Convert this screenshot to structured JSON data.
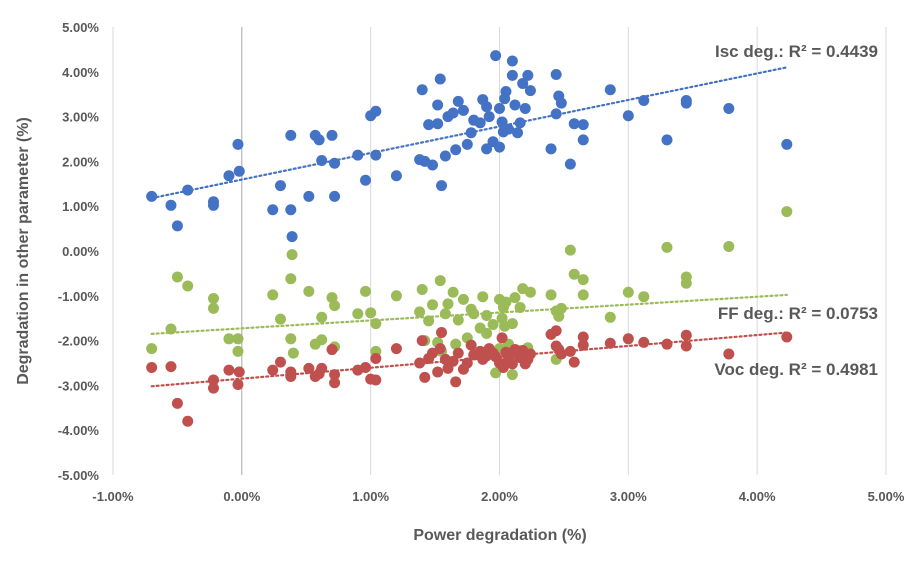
{
  "chart_data": {
    "type": "scatter",
    "xlabel": "Power degradation (%)",
    "ylabel": "Degradation in other parameter (%)",
    "xlim": [
      -1.0,
      5.0
    ],
    "ylim": [
      -5.0,
      5.0
    ],
    "x_ticks": [
      "-1.00%",
      "0.00%",
      "1.00%",
      "2.00%",
      "3.00%",
      "4.00%",
      "5.00%"
    ],
    "y_ticks": [
      "5.00%",
      "4.00%",
      "3.00%",
      "2.00%",
      "1.00%",
      "0.00%",
      "-1.00%",
      "-2.00%",
      "-3.00%",
      "-4.00%",
      "-5.00%"
    ],
    "grid": "vertical",
    "annotations": [
      "Isc deg.: R² = 0.4439",
      "FF deg.: R² = 0.0753",
      "Voc deg. R² = 0.4981"
    ],
    "series": [
      {
        "color": "#4472c4",
        "trendline": {
          "x0": -0.7,
          "y0": 1.18,
          "x1": 4.23,
          "y1": 4.1
        },
        "points": [
          [
            -0.7,
            1.22
          ],
          [
            -0.55,
            1.02
          ],
          [
            -0.5,
            0.56
          ],
          [
            -0.42,
            1.36
          ],
          [
            -0.22,
            1.1
          ],
          [
            -0.22,
            1.02
          ],
          [
            -0.1,
            1.68
          ],
          [
            -0.03,
            2.38
          ],
          [
            -0.02,
            1.78
          ],
          [
            0.24,
            0.92
          ],
          [
            0.3,
            1.46
          ],
          [
            0.38,
            2.58
          ],
          [
            0.38,
            0.92
          ],
          [
            0.39,
            0.32
          ],
          [
            0.52,
            1.22
          ],
          [
            0.57,
            2.58
          ],
          [
            0.6,
            2.48
          ],
          [
            0.62,
            2.02
          ],
          [
            0.7,
            2.58
          ],
          [
            0.72,
            1.22
          ],
          [
            0.72,
            1.96
          ],
          [
            0.9,
            2.14
          ],
          [
            0.96,
            1.58
          ],
          [
            1.0,
            3.02
          ],
          [
            1.04,
            3.12
          ],
          [
            1.04,
            2.14
          ],
          [
            1.2,
            1.68
          ],
          [
            1.38,
            2.04
          ],
          [
            1.4,
            3.6
          ],
          [
            1.42,
            2.0
          ],
          [
            1.45,
            2.82
          ],
          [
            1.48,
            1.92
          ],
          [
            1.52,
            3.26
          ],
          [
            1.52,
            2.84
          ],
          [
            1.54,
            3.84
          ],
          [
            1.55,
            1.46
          ],
          [
            1.58,
            2.12
          ],
          [
            1.6,
            3.0
          ],
          [
            1.64,
            3.08
          ],
          [
            1.66,
            2.26
          ],
          [
            1.68,
            3.34
          ],
          [
            1.72,
            3.14
          ],
          [
            1.75,
            2.38
          ],
          [
            1.78,
            2.64
          ],
          [
            1.8,
            2.92
          ],
          [
            1.85,
            2.86
          ],
          [
            1.87,
            3.38
          ],
          [
            1.9,
            3.22
          ],
          [
            1.9,
            2.28
          ],
          [
            1.92,
            3.0
          ],
          [
            1.95,
            2.44
          ],
          [
            1.97,
            4.36
          ],
          [
            2.0,
            2.32
          ],
          [
            2.0,
            3.18
          ],
          [
            2.02,
            2.88
          ],
          [
            2.03,
            2.66
          ],
          [
            2.04,
            3.4
          ],
          [
            2.05,
            3.56
          ],
          [
            2.07,
            2.72
          ],
          [
            2.1,
            4.24
          ],
          [
            2.1,
            3.92
          ],
          [
            2.12,
            3.26
          ],
          [
            2.14,
            2.64
          ],
          [
            2.16,
            2.86
          ],
          [
            2.18,
            3.74
          ],
          [
            2.2,
            3.18
          ],
          [
            2.22,
            3.92
          ],
          [
            2.24,
            3.58
          ],
          [
            2.4,
            2.28
          ],
          [
            2.44,
            3.94
          ],
          [
            2.44,
            3.06
          ],
          [
            2.46,
            3.46
          ],
          [
            2.48,
            3.3
          ],
          [
            2.55,
            1.94
          ],
          [
            2.58,
            2.84
          ],
          [
            2.65,
            2.82
          ],
          [
            2.65,
            2.48
          ],
          [
            2.86,
            3.6
          ],
          [
            3.0,
            3.02
          ],
          [
            3.12,
            3.36
          ],
          [
            3.3,
            2.48
          ],
          [
            3.45,
            3.36
          ],
          [
            3.45,
            3.3
          ],
          [
            3.78,
            3.18
          ],
          [
            4.23,
            2.38
          ]
        ]
      },
      {
        "color": "#9bbb59",
        "trendline": {
          "x0": -0.7,
          "y0": -1.85,
          "x1": 4.23,
          "y1": -0.98
        },
        "points": [
          [
            -0.7,
            -2.18
          ],
          [
            -0.55,
            -1.74
          ],
          [
            -0.5,
            -0.58
          ],
          [
            -0.42,
            -0.78
          ],
          [
            -0.22,
            -1.06
          ],
          [
            -0.22,
            -1.28
          ],
          [
            -0.1,
            -1.96
          ],
          [
            -0.03,
            -2.24
          ],
          [
            -0.03,
            -1.96
          ],
          [
            0.24,
            -0.98
          ],
          [
            0.3,
            -1.52
          ],
          [
            0.38,
            -1.96
          ],
          [
            0.38,
            -0.62
          ],
          [
            0.39,
            -0.08
          ],
          [
            0.4,
            -2.28
          ],
          [
            0.52,
            -0.9
          ],
          [
            0.57,
            -2.08
          ],
          [
            0.62,
            -1.48
          ],
          [
            0.62,
            -1.98
          ],
          [
            0.7,
            -1.04
          ],
          [
            0.72,
            -1.22
          ],
          [
            0.72,
            -2.14
          ],
          [
            0.9,
            -1.4
          ],
          [
            0.96,
            -0.9
          ],
          [
            1.0,
            -1.38
          ],
          [
            1.04,
            -1.62
          ],
          [
            1.04,
            -2.24
          ],
          [
            1.2,
            -1.0
          ],
          [
            1.38,
            -1.36
          ],
          [
            1.4,
            -0.86
          ],
          [
            1.42,
            -2.0
          ],
          [
            1.45,
            -1.56
          ],
          [
            1.48,
            -1.2
          ],
          [
            1.52,
            -2.04
          ],
          [
            1.54,
            -0.66
          ],
          [
            1.55,
            -2.24
          ],
          [
            1.58,
            -1.4
          ],
          [
            1.6,
            -1.18
          ],
          [
            1.64,
            -0.92
          ],
          [
            1.66,
            -2.08
          ],
          [
            1.68,
            -1.54
          ],
          [
            1.72,
            -1.08
          ],
          [
            1.75,
            -1.94
          ],
          [
            1.78,
            -1.3
          ],
          [
            1.8,
            -1.4
          ],
          [
            1.85,
            -1.72
          ],
          [
            1.87,
            -1.02
          ],
          [
            1.9,
            -1.44
          ],
          [
            1.9,
            -1.84
          ],
          [
            1.92,
            -2.28
          ],
          [
            1.95,
            -1.64
          ],
          [
            1.97,
            -2.72
          ],
          [
            2.0,
            -1.08
          ],
          [
            2.0,
            -2.18
          ],
          [
            2.02,
            -1.5
          ],
          [
            2.03,
            -1.26
          ],
          [
            2.04,
            -1.68
          ],
          [
            2.05,
            -1.14
          ],
          [
            2.07,
            -2.08
          ],
          [
            2.1,
            -1.62
          ],
          [
            2.1,
            -2.76
          ],
          [
            2.12,
            -1.04
          ],
          [
            2.14,
            -2.22
          ],
          [
            2.16,
            -1.26
          ],
          [
            2.18,
            -0.84
          ],
          [
            2.2,
            -2.44
          ],
          [
            2.22,
            -2.16
          ],
          [
            2.24,
            -0.92
          ],
          [
            2.4,
            -0.98
          ],
          [
            2.44,
            -1.34
          ],
          [
            2.44,
            -2.42
          ],
          [
            2.46,
            -1.46
          ],
          [
            2.48,
            -1.28
          ],
          [
            2.55,
            0.02
          ],
          [
            2.58,
            -0.52
          ],
          [
            2.65,
            -0.64
          ],
          [
            2.65,
            -0.98
          ],
          [
            2.86,
            -1.48
          ],
          [
            3.0,
            -0.92
          ],
          [
            3.12,
            -1.02
          ],
          [
            3.3,
            0.08
          ],
          [
            3.45,
            -0.58
          ],
          [
            3.45,
            -0.72
          ],
          [
            3.78,
            0.1
          ],
          [
            4.23,
            0.88
          ]
        ]
      },
      {
        "color": "#c0504d",
        "trendline": {
          "x0": -0.7,
          "y0": -3.02,
          "x1": 4.23,
          "y1": -1.82
        },
        "points": [
          [
            -0.7,
            -2.6
          ],
          [
            -0.55,
            -2.58
          ],
          [
            -0.5,
            -3.4
          ],
          [
            -0.42,
            -3.8
          ],
          [
            -0.22,
            -2.88
          ],
          [
            -0.22,
            -3.06
          ],
          [
            -0.1,
            -2.66
          ],
          [
            -0.03,
            -2.98
          ],
          [
            -0.02,
            -2.7
          ],
          [
            0.24,
            -2.66
          ],
          [
            0.3,
            -2.48
          ],
          [
            0.38,
            -2.7
          ],
          [
            0.38,
            -2.8
          ],
          [
            0.52,
            -2.62
          ],
          [
            0.57,
            -2.8
          ],
          [
            0.6,
            -2.74
          ],
          [
            0.62,
            -2.62
          ],
          [
            0.7,
            -2.2
          ],
          [
            0.72,
            -2.76
          ],
          [
            0.72,
            -2.94
          ],
          [
            0.9,
            -2.66
          ],
          [
            0.96,
            -2.6
          ],
          [
            1.0,
            -2.86
          ],
          [
            1.04,
            -2.4
          ],
          [
            1.04,
            -2.88
          ],
          [
            1.2,
            -2.18
          ],
          [
            1.38,
            -2.5
          ],
          [
            1.4,
            -2.0
          ],
          [
            1.42,
            -2.82
          ],
          [
            1.45,
            -2.4
          ],
          [
            1.48,
            -2.28
          ],
          [
            1.52,
            -2.7
          ],
          [
            1.54,
            -2.18
          ],
          [
            1.55,
            -1.82
          ],
          [
            1.58,
            -2.42
          ],
          [
            1.6,
            -2.62
          ],
          [
            1.64,
            -2.46
          ],
          [
            1.66,
            -2.92
          ],
          [
            1.68,
            -2.28
          ],
          [
            1.72,
            -2.64
          ],
          [
            1.75,
            -2.5
          ],
          [
            1.78,
            -2.1
          ],
          [
            1.8,
            -2.32
          ],
          [
            1.85,
            -2.24
          ],
          [
            1.87,
            -2.42
          ],
          [
            1.9,
            -2.34
          ],
          [
            1.92,
            -2.18
          ],
          [
            1.95,
            -2.28
          ],
          [
            1.97,
            -2.36
          ],
          [
            2.0,
            -2.5
          ],
          [
            2.02,
            -1.94
          ],
          [
            2.03,
            -2.6
          ],
          [
            2.05,
            -2.26
          ],
          [
            2.07,
            -2.4
          ],
          [
            2.1,
            -2.52
          ],
          [
            2.12,
            -2.2
          ],
          [
            2.14,
            -2.3
          ],
          [
            2.16,
            -2.38
          ],
          [
            2.18,
            -2.22
          ],
          [
            2.2,
            -2.52
          ],
          [
            2.22,
            -2.42
          ],
          [
            2.24,
            -2.3
          ],
          [
            2.4,
            -1.86
          ],
          [
            2.44,
            -1.78
          ],
          [
            2.44,
            -2.12
          ],
          [
            2.46,
            -2.2
          ],
          [
            2.48,
            -2.3
          ],
          [
            2.55,
            -2.24
          ],
          [
            2.58,
            -2.48
          ],
          [
            2.65,
            -1.92
          ],
          [
            2.65,
            -2.1
          ],
          [
            2.86,
            -2.06
          ],
          [
            3.0,
            -1.96
          ],
          [
            3.12,
            -2.04
          ],
          [
            3.3,
            -2.08
          ],
          [
            3.45,
            -1.88
          ],
          [
            3.45,
            -2.12
          ],
          [
            3.78,
            -2.3
          ],
          [
            4.23,
            -1.92
          ]
        ]
      }
    ]
  }
}
